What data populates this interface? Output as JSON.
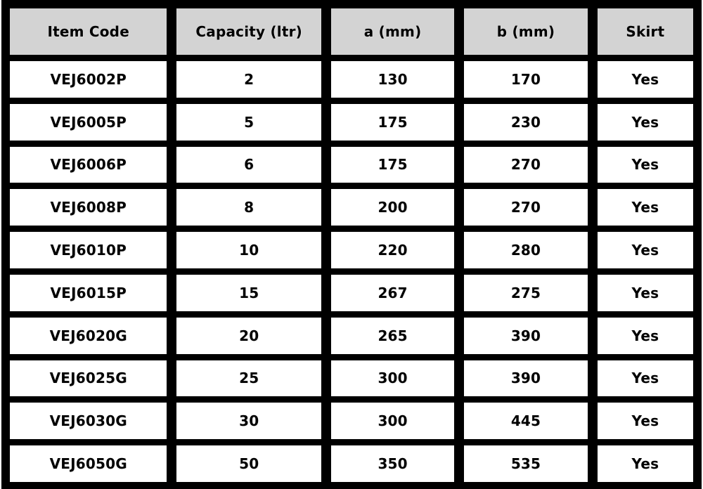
{
  "table": {
    "columns": [
      "Item Code",
      "Capacity (ltr)",
      "a (mm)",
      "b (mm)",
      "Skirt"
    ],
    "rows": [
      [
        "VEJ6002P",
        "2",
        "130",
        "170",
        "Yes"
      ],
      [
        "VEJ6005P",
        "5",
        "175",
        "230",
        "Yes"
      ],
      [
        "VEJ6006P",
        "6",
        "175",
        "270",
        "Yes"
      ],
      [
        "VEJ6008P",
        "8",
        "200",
        "270",
        "Yes"
      ],
      [
        "VEJ6010P",
        "10",
        "220",
        "280",
        "Yes"
      ],
      [
        "VEJ6015P",
        "15",
        "267",
        "275",
        "Yes"
      ],
      [
        "VEJ6020G",
        "20",
        "265",
        "390",
        "Yes"
      ],
      [
        "VEJ6025G",
        "25",
        "300",
        "390",
        "Yes"
      ],
      [
        "VEJ6030G",
        "30",
        "300",
        "445",
        "Yes"
      ],
      [
        "VEJ6050G",
        "50",
        "350",
        "535",
        "Yes"
      ]
    ]
  },
  "colors": {
    "border": "#000000",
    "header_bg": "#d3d3d3",
    "cell_bg": "#ffffff",
    "text": "#000000"
  }
}
